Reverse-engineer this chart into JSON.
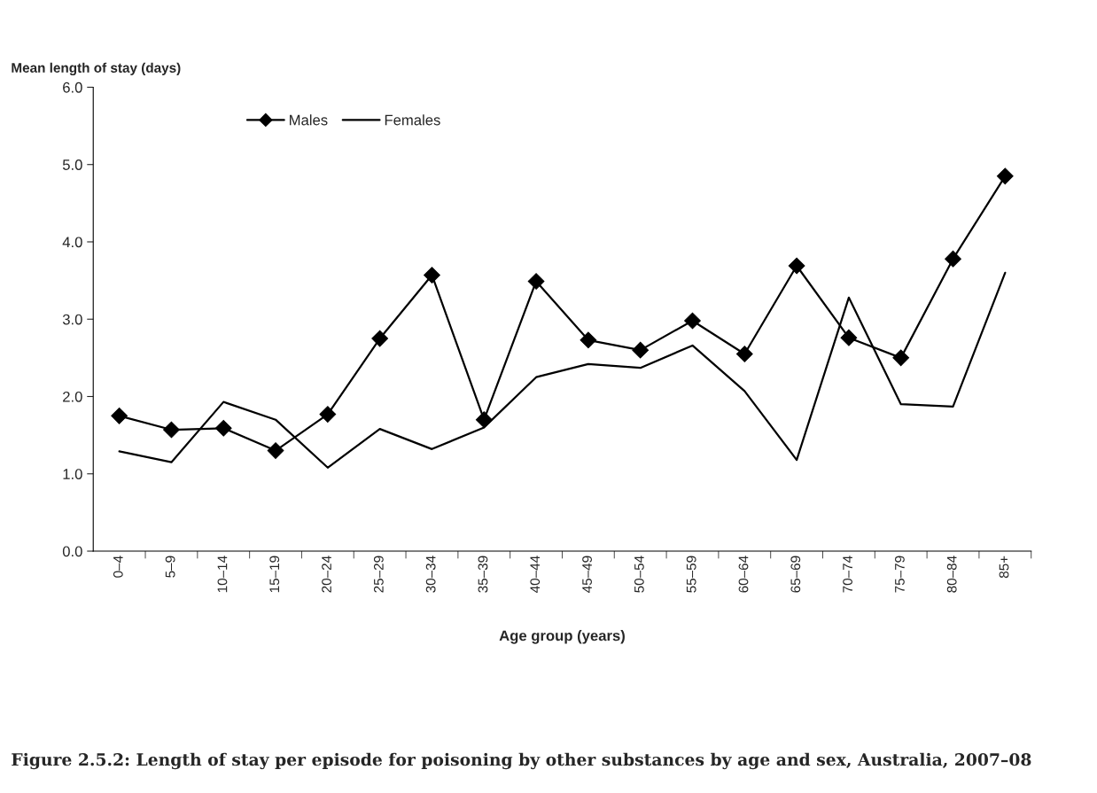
{
  "chart_data": {
    "type": "line",
    "title": "Figure 2.5.2: Length of stay per episode for poisoning by other substances by age and sex, Australia, 2007–08",
    "ylabel": "Mean length of stay (days)",
    "xlabel": "Age group (years)",
    "categories": [
      "0–4",
      "5–9",
      "10–14",
      "15–19",
      "20–24",
      "25–29",
      "30–34",
      "35–39",
      "40–44",
      "45–49",
      "50–54",
      "55–59",
      "60–64",
      "65–69",
      "70–74",
      "75–79",
      "80–84",
      "85+"
    ],
    "series": [
      {
        "name": "Males",
        "color": "#000000",
        "marker": "diamond",
        "values": [
          1.75,
          1.57,
          1.59,
          1.3,
          1.77,
          2.75,
          3.57,
          1.7,
          3.49,
          2.73,
          2.6,
          2.98,
          2.55,
          3.69,
          2.76,
          2.5,
          3.78,
          4.85
        ]
      },
      {
        "name": "Females",
        "color": "#000000",
        "marker": "none",
        "values": [
          1.29,
          1.15,
          1.93,
          1.7,
          1.08,
          1.58,
          1.32,
          1.6,
          2.25,
          2.42,
          2.37,
          2.66,
          2.07,
          1.18,
          3.28,
          1.9,
          1.87,
          3.6
        ]
      }
    ],
    "ylim": [
      0,
      6
    ],
    "yticks": [
      {
        "value": 0,
        "label": "0.0"
      },
      {
        "value": 1,
        "label": "1.0"
      },
      {
        "value": 2,
        "label": "2.0"
      },
      {
        "value": 3,
        "label": "3.0"
      },
      {
        "value": 4,
        "label": "4.0"
      },
      {
        "value": 5,
        "label": "5.0"
      },
      {
        "value": 6,
        "label": "6.0"
      }
    ],
    "grid": false,
    "legend": "top left",
    "line_style": "solid"
  }
}
